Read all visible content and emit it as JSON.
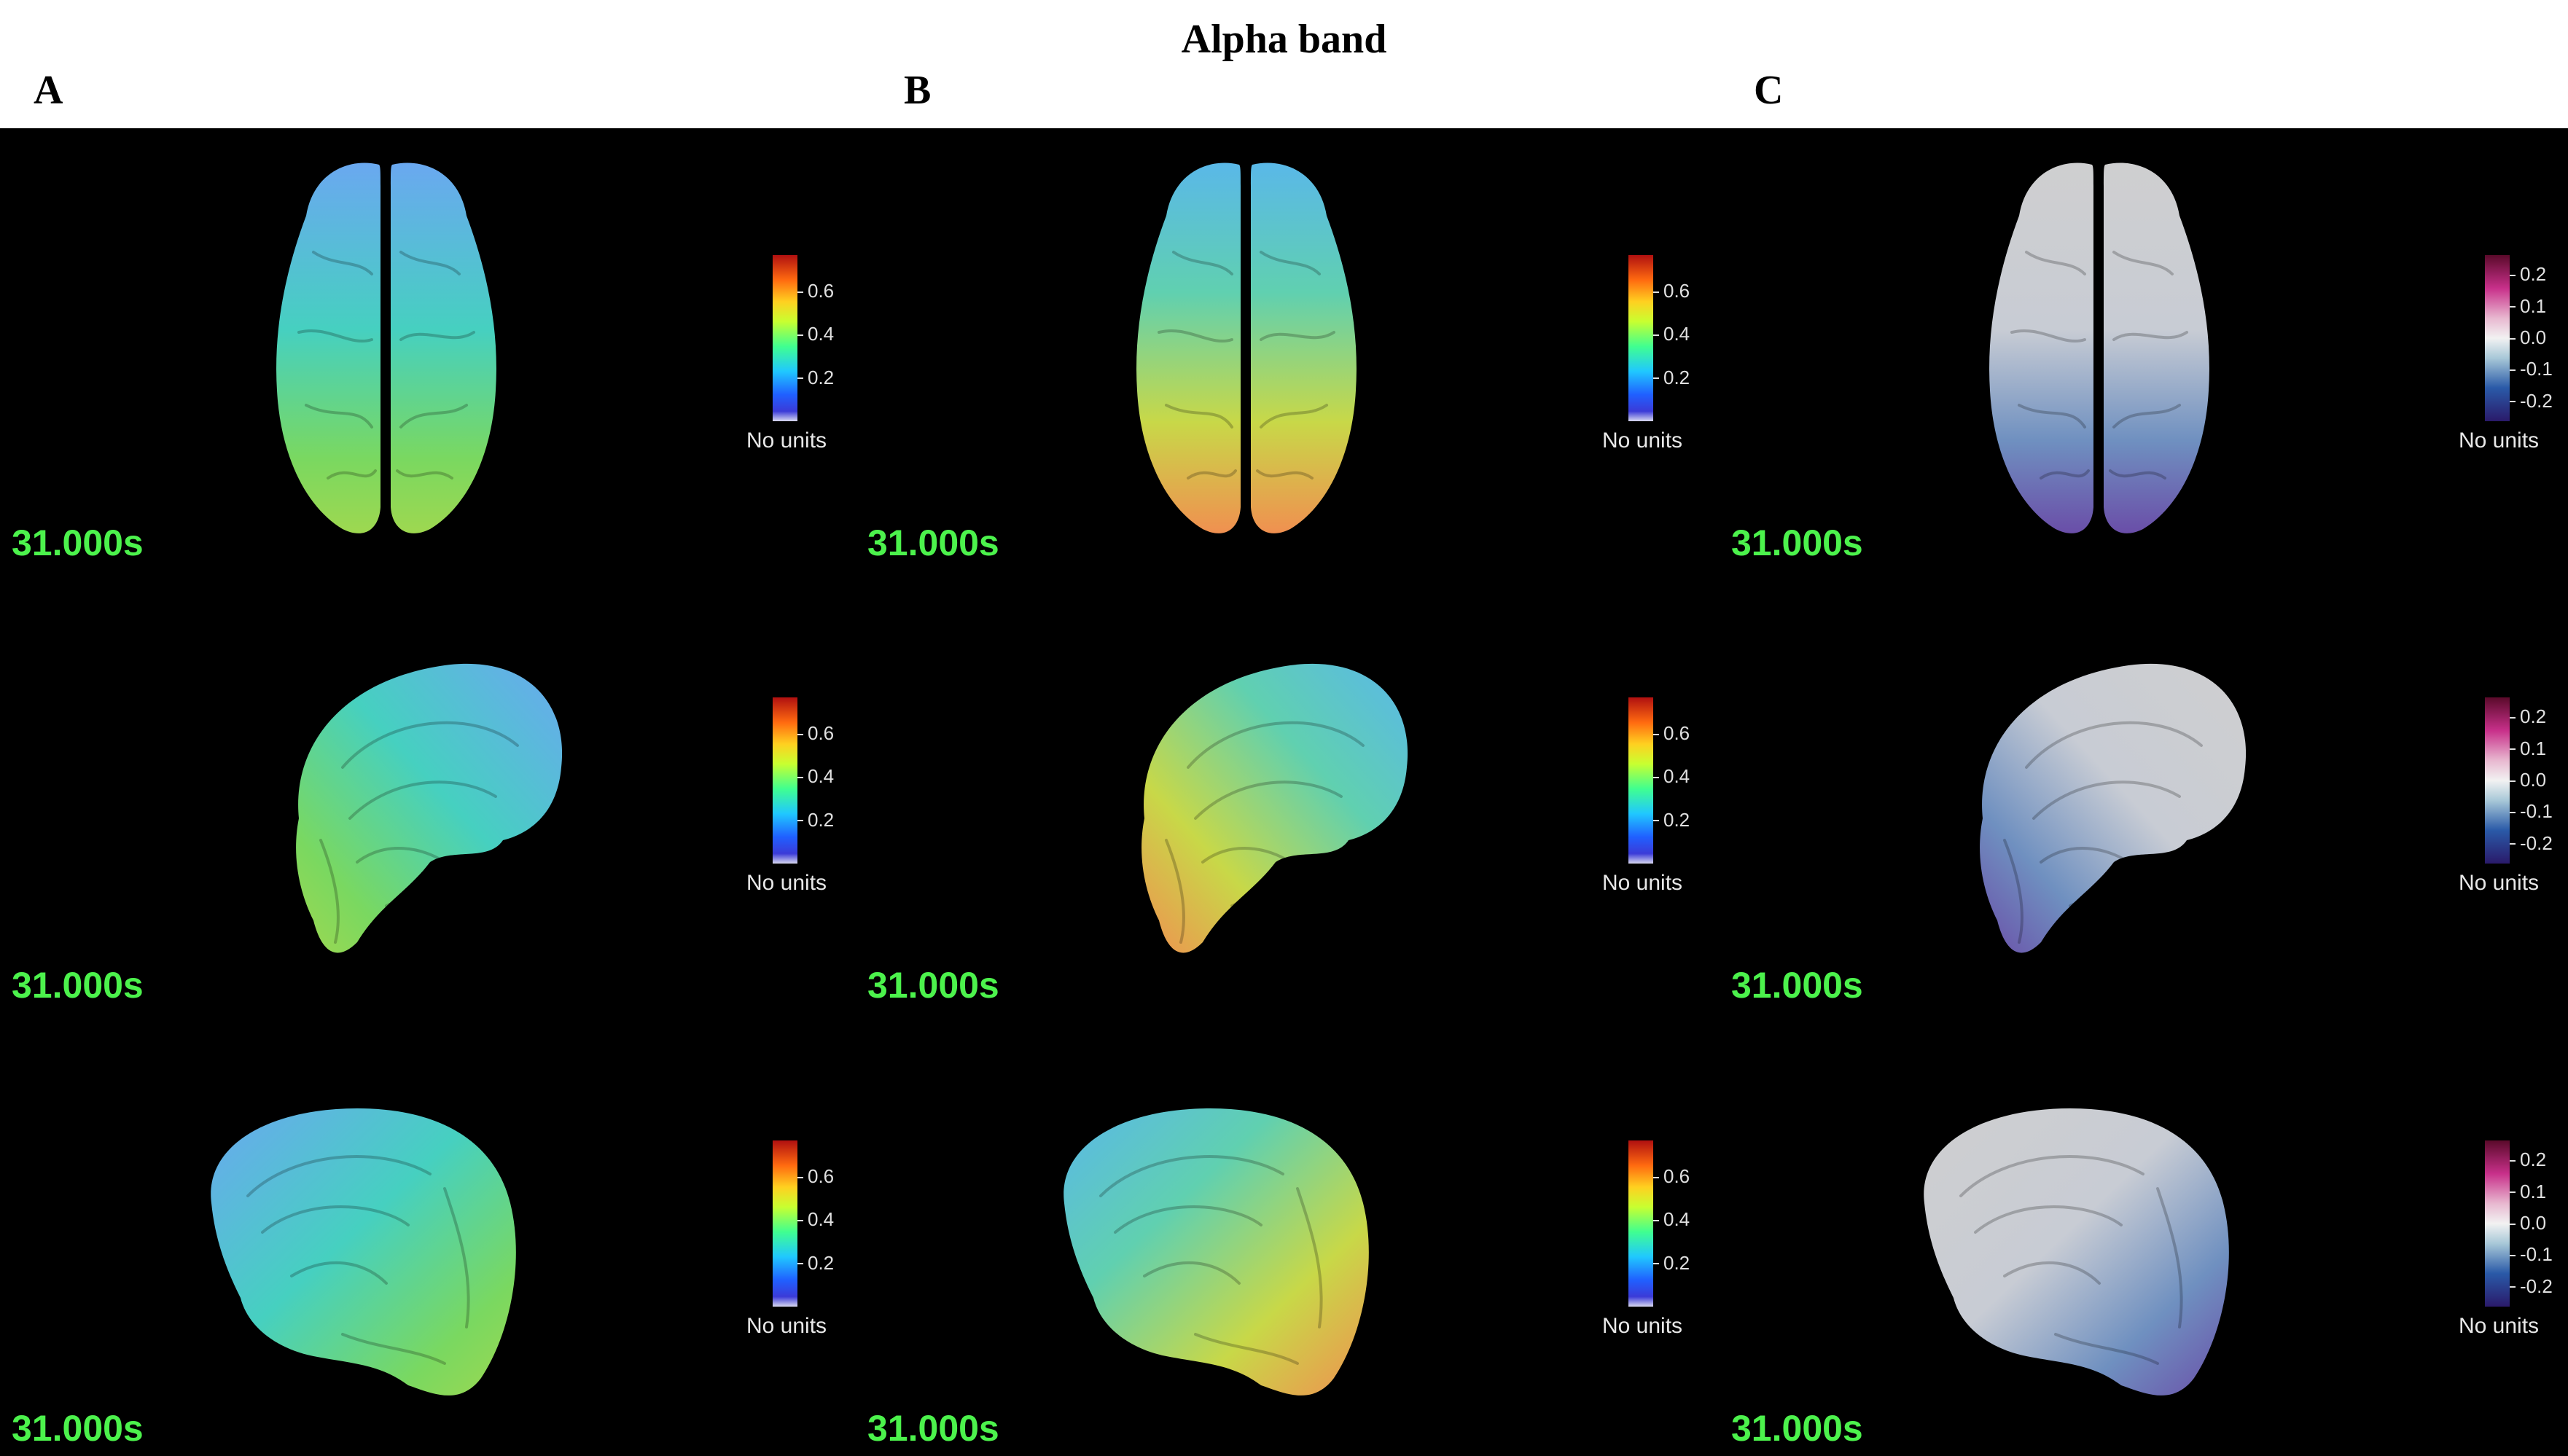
{
  "title": "Alpha band",
  "columns": [
    {
      "letter": "A",
      "colormap": "jet"
    },
    {
      "letter": "B",
      "colormap": "jet"
    },
    {
      "letter": "C",
      "colormap": "diverging"
    }
  ],
  "time_label": "31.000s",
  "units_label": "No units",
  "ticks_jet": [
    "0.6",
    "0.4",
    "0.2"
  ],
  "ticks_div": [
    "0.2",
    "0.1",
    "0.0",
    "-0.1",
    "-0.2"
  ],
  "colors": {
    "background": "#000000",
    "time_text": "#4cf24c"
  },
  "views": [
    "top",
    "medial-left",
    "medial-right"
  ]
}
